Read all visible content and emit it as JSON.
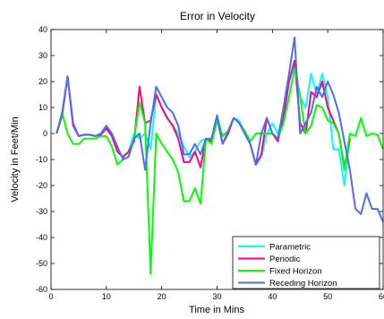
{
  "chart_data": {
    "type": "line",
    "title": "Error in Velocity",
    "xlabel": "Time in Mins",
    "ylabel": "Velocity in Feet/Min",
    "xlim": [
      0,
      60
    ],
    "ylim": [
      -60,
      40
    ],
    "xticks": [
      0,
      10,
      20,
      30,
      40,
      50,
      60
    ],
    "yticks": [
      -60,
      -50,
      -40,
      -30,
      -20,
      -10,
      0,
      10,
      20,
      30,
      40
    ],
    "grid": false,
    "legend_position": "bottom-right",
    "series": [
      {
        "name": "Parametric",
        "color": "#00ffff",
        "x": [
          1,
          2,
          3,
          4,
          5,
          6,
          7,
          8,
          9,
          10,
          11,
          12,
          13,
          14,
          15,
          16,
          17,
          18,
          19,
          20,
          21,
          22,
          23,
          24,
          25,
          26,
          27,
          28,
          29,
          30,
          31,
          32,
          33,
          34,
          35,
          36,
          37,
          38,
          39,
          40,
          41,
          42,
          43,
          44,
          45,
          46,
          47,
          48,
          49,
          50,
          51,
          52,
          53,
          54
        ],
        "y": [
          0,
          7,
          22,
          3,
          -1,
          -0.5,
          -0.5,
          -1,
          -0.5,
          2,
          -1,
          -7,
          -9,
          -7,
          0,
          -2,
          0,
          -6,
          15,
          10,
          6,
          3,
          0,
          -5,
          -9,
          -7,
          -3,
          -2,
          -3,
          7,
          -1,
          1,
          6,
          5,
          0,
          -4,
          -12,
          -9,
          0,
          4,
          0,
          6,
          20,
          27,
          14,
          10,
          23,
          15,
          23,
          14,
          -6,
          -6,
          -20,
          -2
        ]
      },
      {
        "name": "Periodic",
        "color": "#ff0080",
        "x": [
          1,
          2,
          3,
          4,
          5,
          6,
          7,
          8,
          9,
          10,
          11,
          12,
          13,
          14,
          15,
          16,
          17,
          18,
          19,
          20,
          21,
          22,
          23,
          24,
          25,
          26,
          27,
          28,
          29,
          30,
          31,
          32,
          33,
          34,
          35,
          36,
          37,
          38,
          39,
          40,
          41,
          42,
          43,
          44,
          45,
          46,
          47,
          48,
          49,
          50,
          51,
          52,
          53,
          54
        ],
        "y": [
          0,
          7,
          22,
          3,
          -1,
          -0.5,
          -0.5,
          -1,
          -0.5,
          2,
          -1,
          -7,
          -9,
          -7,
          -3,
          18,
          4,
          5,
          15,
          10,
          6,
          3,
          -2,
          -11,
          -11,
          -7,
          -13,
          -2,
          -3,
          6,
          -4,
          0,
          6,
          4,
          1,
          -4,
          -12,
          -8,
          6,
          0,
          -3,
          6,
          20,
          28,
          4,
          0,
          16,
          14,
          20,
          10,
          5,
          0,
          -13,
          -2
        ]
      },
      {
        "name": "Fixed Horizon",
        "color": "#00ff00",
        "x": [
          1,
          2,
          3,
          4,
          5,
          6,
          7,
          8,
          9,
          10,
          11,
          12,
          13,
          14,
          15,
          16,
          17,
          18,
          19,
          20,
          21,
          22,
          23,
          24,
          25,
          26,
          27,
          28,
          29,
          30,
          31,
          32,
          33,
          34,
          35,
          36,
          37,
          38,
          39,
          40,
          41,
          42,
          43,
          44,
          45,
          46,
          47,
          48,
          49,
          50,
          51,
          52,
          53,
          54,
          55,
          56,
          57,
          58,
          59,
          60
        ],
        "y": [
          0,
          8,
          0,
          -4,
          -4,
          -2,
          -2,
          -2,
          -1,
          -1,
          -5,
          -12,
          -10,
          -9,
          -2,
          12,
          4,
          -54,
          0,
          -4,
          -7,
          -10,
          -15,
          -26,
          -26,
          -21,
          -27,
          -2,
          -4,
          5,
          -1,
          1,
          6,
          4,
          1,
          -3,
          0,
          0,
          0,
          0,
          -2,
          4,
          14,
          25,
          14,
          0,
          3,
          11,
          10,
          5,
          4,
          0,
          -14,
          0,
          -1,
          6,
          -1,
          0,
          -0.5,
          -6
        ]
      },
      {
        "name": "Receding Horizon",
        "color": "#4d6ef0",
        "x": [
          1,
          2,
          3,
          4,
          5,
          6,
          7,
          8,
          9,
          10,
          11,
          12,
          13,
          14,
          15,
          16,
          17,
          18,
          19,
          20,
          21,
          22,
          23,
          24,
          25,
          26,
          27,
          28,
          29,
          30,
          31,
          32,
          33,
          34,
          35,
          36,
          37,
          38,
          39,
          40,
          41,
          42,
          43,
          44,
          45,
          46,
          47,
          48,
          49,
          50,
          51,
          52,
          53,
          54,
          55,
          56,
          57,
          58,
          59,
          60
        ],
        "y": [
          0,
          8,
          22,
          4,
          -1,
          -0.5,
          -0.5,
          -1,
          0,
          3,
          0,
          -5,
          -10,
          -9,
          -2,
          0,
          -14,
          4,
          18,
          14,
          10,
          8,
          3,
          -8,
          -8,
          -4,
          -8,
          -2,
          -2,
          7,
          -4,
          1,
          6,
          4,
          0,
          -4,
          -12,
          0,
          6,
          0,
          -2,
          10,
          23,
          37,
          0,
          4,
          8,
          18,
          14,
          20,
          15,
          8,
          -3,
          -14,
          -29,
          -31,
          -23,
          -29,
          -29,
          -34
        ]
      }
    ]
  }
}
